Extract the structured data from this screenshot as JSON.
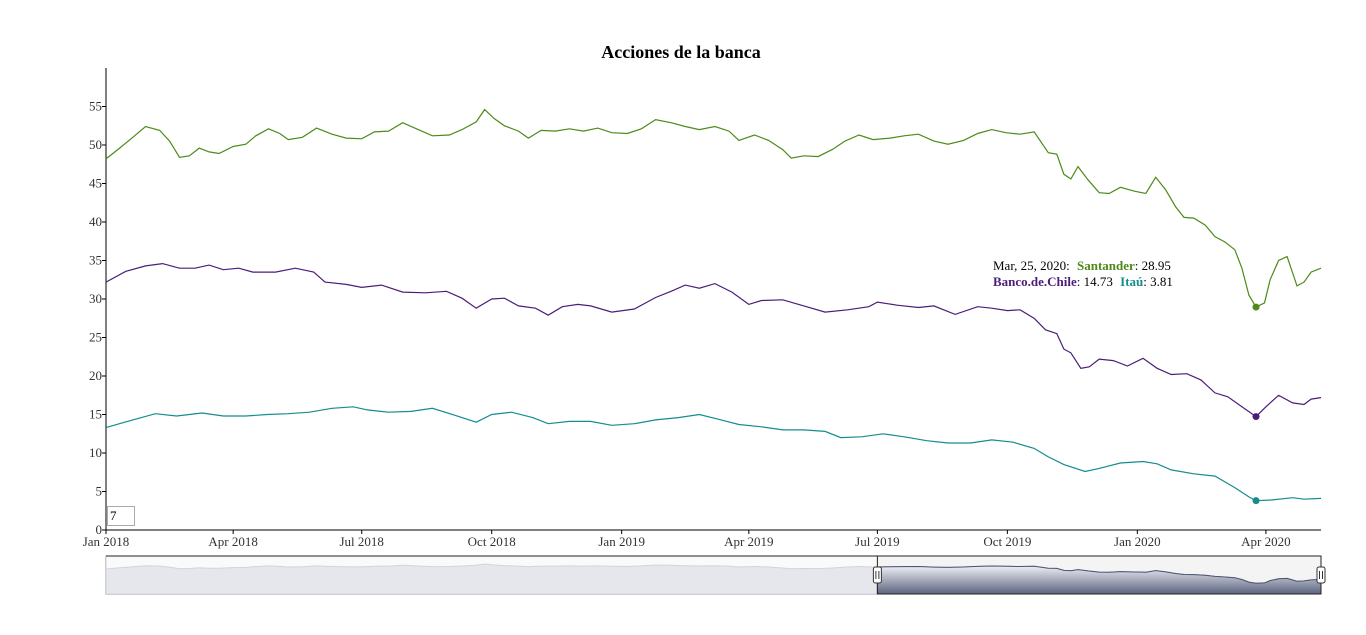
{
  "chart_data": {
    "type": "line",
    "title": "Acciones de la banca",
    "xlabel": "",
    "ylabel": "",
    "x_range": [
      "2018-01-01",
      "2020-05-10"
    ],
    "ylim": [
      0,
      60
    ],
    "y_ticks": [
      0,
      5,
      10,
      15,
      20,
      25,
      30,
      35,
      40,
      45,
      50,
      55
    ],
    "x_ticks": [
      {
        "date": "2018-01-01",
        "label": "Jan 2018"
      },
      {
        "date": "2018-04-01",
        "label": "Apr 2018"
      },
      {
        "date": "2018-07-01",
        "label": "Jul 2018"
      },
      {
        "date": "2018-10-01",
        "label": "Oct 2018"
      },
      {
        "date": "2019-01-01",
        "label": "Jan 2019"
      },
      {
        "date": "2019-04-01",
        "label": "Apr 2019"
      },
      {
        "date": "2019-07-01",
        "label": "Jul 2019"
      },
      {
        "date": "2019-10-01",
        "label": "Oct 2019"
      },
      {
        "date": "2020-01-01",
        "label": "Jan 2020"
      },
      {
        "date": "2020-04-01",
        "label": "Apr 2020"
      }
    ],
    "grid": false,
    "legend_placement": "top-right",
    "legend": {
      "date_label": "Mar, 25, 2020:",
      "entries": [
        {
          "name": "Santander",
          "value": "28.95"
        },
        {
          "name": "Banco.de.Chile",
          "value": "14.73"
        },
        {
          "name": "Itaú",
          "value": "3.81"
        }
      ]
    },
    "highlight_date": "2020-03-25",
    "roll_period": "7",
    "range_selector_window": [
      "2019-07-01",
      "2020-05-10"
    ],
    "series": [
      {
        "name": "Santander",
        "color": "#4e8a1a",
        "points": [
          [
            "2018-01-01",
            48.2
          ],
          [
            "2018-01-10",
            49.5
          ],
          [
            "2018-01-20",
            51.0
          ],
          [
            "2018-01-29",
            52.4
          ],
          [
            "2018-02-08",
            51.9
          ],
          [
            "2018-02-15",
            50.5
          ],
          [
            "2018-02-22",
            48.4
          ],
          [
            "2018-03-01",
            48.6
          ],
          [
            "2018-03-08",
            49.6
          ],
          [
            "2018-03-15",
            49.1
          ],
          [
            "2018-03-22",
            48.9
          ],
          [
            "2018-04-01",
            49.8
          ],
          [
            "2018-04-10",
            50.1
          ],
          [
            "2018-04-17",
            51.2
          ],
          [
            "2018-04-26",
            52.1
          ],
          [
            "2018-05-04",
            51.5
          ],
          [
            "2018-05-10",
            50.7
          ],
          [
            "2018-05-20",
            51.0
          ],
          [
            "2018-05-30",
            52.2
          ],
          [
            "2018-06-10",
            51.4
          ],
          [
            "2018-06-20",
            50.9
          ],
          [
            "2018-07-01",
            50.8
          ],
          [
            "2018-07-10",
            51.7
          ],
          [
            "2018-07-20",
            51.8
          ],
          [
            "2018-07-30",
            52.9
          ],
          [
            "2018-08-10",
            52.0
          ],
          [
            "2018-08-20",
            51.2
          ],
          [
            "2018-09-01",
            51.3
          ],
          [
            "2018-09-10",
            52.0
          ],
          [
            "2018-09-20",
            53.0
          ],
          [
            "2018-09-26",
            54.6
          ],
          [
            "2018-10-03",
            53.4
          ],
          [
            "2018-10-10",
            52.5
          ],
          [
            "2018-10-20",
            51.8
          ],
          [
            "2018-10-27",
            50.9
          ],
          [
            "2018-11-05",
            51.9
          ],
          [
            "2018-11-15",
            51.8
          ],
          [
            "2018-11-25",
            52.1
          ],
          [
            "2018-12-05",
            51.8
          ],
          [
            "2018-12-15",
            52.2
          ],
          [
            "2018-12-25",
            51.6
          ],
          [
            "2019-01-05",
            51.5
          ],
          [
            "2019-01-15",
            52.1
          ],
          [
            "2019-01-25",
            53.3
          ],
          [
            "2019-02-05",
            52.9
          ],
          [
            "2019-02-15",
            52.4
          ],
          [
            "2019-02-25",
            52.0
          ],
          [
            "2019-03-08",
            52.4
          ],
          [
            "2019-03-18",
            51.8
          ],
          [
            "2019-03-25",
            50.6
          ],
          [
            "2019-04-05",
            51.3
          ],
          [
            "2019-04-15",
            50.6
          ],
          [
            "2019-04-25",
            49.4
          ],
          [
            "2019-05-01",
            48.3
          ],
          [
            "2019-05-10",
            48.6
          ],
          [
            "2019-05-20",
            48.5
          ],
          [
            "2019-05-30",
            49.4
          ],
          [
            "2019-06-08",
            50.5
          ],
          [
            "2019-06-18",
            51.3
          ],
          [
            "2019-06-28",
            50.7
          ],
          [
            "2019-07-10",
            50.9
          ],
          [
            "2019-07-20",
            51.2
          ],
          [
            "2019-07-30",
            51.4
          ],
          [
            "2019-08-10",
            50.5
          ],
          [
            "2019-08-20",
            50.1
          ],
          [
            "2019-08-31",
            50.6
          ],
          [
            "2019-09-10",
            51.5
          ],
          [
            "2019-09-20",
            52.0
          ],
          [
            "2019-09-30",
            51.6
          ],
          [
            "2019-10-10",
            51.4
          ],
          [
            "2019-10-20",
            51.7
          ],
          [
            "2019-10-30",
            49.0
          ],
          [
            "2019-11-05",
            48.8
          ],
          [
            "2019-11-10",
            46.2
          ],
          [
            "2019-11-15",
            45.6
          ],
          [
            "2019-11-20",
            47.2
          ],
          [
            "2019-11-27",
            45.5
          ],
          [
            "2019-12-05",
            43.8
          ],
          [
            "2019-12-12",
            43.7
          ],
          [
            "2019-12-20",
            44.5
          ],
          [
            "2019-12-30",
            44.0
          ],
          [
            "2020-01-07",
            43.7
          ],
          [
            "2020-01-14",
            45.8
          ],
          [
            "2020-01-21",
            44.2
          ],
          [
            "2020-01-28",
            42.0
          ],
          [
            "2020-02-03",
            40.6
          ],
          [
            "2020-02-10",
            40.5
          ],
          [
            "2020-02-18",
            39.6
          ],
          [
            "2020-02-25",
            38.1
          ],
          [
            "2020-03-03",
            37.4
          ],
          [
            "2020-03-10",
            36.4
          ],
          [
            "2020-03-15",
            34.0
          ],
          [
            "2020-03-20",
            30.5
          ],
          [
            "2020-03-25",
            28.95
          ],
          [
            "2020-03-31",
            29.5
          ],
          [
            "2020-04-04",
            32.5
          ],
          [
            "2020-04-10",
            35.0
          ],
          [
            "2020-04-16",
            35.5
          ],
          [
            "2020-04-23",
            31.7
          ],
          [
            "2020-04-28",
            32.2
          ],
          [
            "2020-05-03",
            33.5
          ],
          [
            "2020-05-10",
            34.0
          ]
        ]
      },
      {
        "name": "Banco.de.Chile",
        "color": "#4b1d7a",
        "points": [
          [
            "2018-01-01",
            32.2
          ],
          [
            "2018-01-15",
            33.6
          ],
          [
            "2018-01-29",
            34.3
          ],
          [
            "2018-02-10",
            34.6
          ],
          [
            "2018-02-22",
            34.0
          ],
          [
            "2018-03-05",
            34.0
          ],
          [
            "2018-03-15",
            34.4
          ],
          [
            "2018-03-25",
            33.8
          ],
          [
            "2018-04-05",
            34.0
          ],
          [
            "2018-04-15",
            33.5
          ],
          [
            "2018-05-01",
            33.5
          ],
          [
            "2018-05-15",
            34.0
          ],
          [
            "2018-05-28",
            33.5
          ],
          [
            "2018-06-05",
            32.2
          ],
          [
            "2018-06-20",
            31.9
          ],
          [
            "2018-07-01",
            31.5
          ],
          [
            "2018-07-15",
            31.8
          ],
          [
            "2018-07-30",
            30.9
          ],
          [
            "2018-08-15",
            30.8
          ],
          [
            "2018-08-30",
            31.0
          ],
          [
            "2018-09-10",
            30.1
          ],
          [
            "2018-09-20",
            28.8
          ],
          [
            "2018-10-01",
            30.0
          ],
          [
            "2018-10-10",
            30.1
          ],
          [
            "2018-10-20",
            29.1
          ],
          [
            "2018-11-01",
            28.8
          ],
          [
            "2018-11-10",
            27.9
          ],
          [
            "2018-11-20",
            29.0
          ],
          [
            "2018-12-01",
            29.3
          ],
          [
            "2018-12-10",
            29.1
          ],
          [
            "2018-12-25",
            28.3
          ],
          [
            "2019-01-10",
            28.7
          ],
          [
            "2019-01-25",
            30.2
          ],
          [
            "2019-02-05",
            31.0
          ],
          [
            "2019-02-15",
            31.8
          ],
          [
            "2019-02-25",
            31.4
          ],
          [
            "2019-03-08",
            32.0
          ],
          [
            "2019-03-20",
            30.9
          ],
          [
            "2019-04-01",
            29.3
          ],
          [
            "2019-04-10",
            29.8
          ],
          [
            "2019-04-25",
            29.9
          ],
          [
            "2019-05-10",
            29.1
          ],
          [
            "2019-05-25",
            28.3
          ],
          [
            "2019-06-10",
            28.6
          ],
          [
            "2019-06-25",
            29.0
          ],
          [
            "2019-07-01",
            29.6
          ],
          [
            "2019-07-15",
            29.2
          ],
          [
            "2019-07-30",
            28.9
          ],
          [
            "2019-08-10",
            29.1
          ],
          [
            "2019-08-25",
            28.0
          ],
          [
            "2019-09-10",
            29.0
          ],
          [
            "2019-09-20",
            28.8
          ],
          [
            "2019-10-01",
            28.5
          ],
          [
            "2019-10-10",
            28.6
          ],
          [
            "2019-10-20",
            27.5
          ],
          [
            "2019-10-28",
            26.0
          ],
          [
            "2019-11-05",
            25.5
          ],
          [
            "2019-11-10",
            23.5
          ],
          [
            "2019-11-15",
            23.0
          ],
          [
            "2019-11-22",
            21.0
          ],
          [
            "2019-11-28",
            21.2
          ],
          [
            "2019-12-05",
            22.2
          ],
          [
            "2019-12-15",
            22.0
          ],
          [
            "2019-12-25",
            21.3
          ],
          [
            "2020-01-05",
            22.3
          ],
          [
            "2020-01-15",
            21.0
          ],
          [
            "2020-01-25",
            20.2
          ],
          [
            "2020-02-05",
            20.3
          ],
          [
            "2020-02-15",
            19.5
          ],
          [
            "2020-02-25",
            17.8
          ],
          [
            "2020-03-05",
            17.3
          ],
          [
            "2020-03-15",
            16.0
          ],
          [
            "2020-03-25",
            14.73
          ],
          [
            "2020-04-01",
            16.0
          ],
          [
            "2020-04-10",
            17.5
          ],
          [
            "2020-04-20",
            16.5
          ],
          [
            "2020-04-28",
            16.3
          ],
          [
            "2020-05-03",
            17.0
          ],
          [
            "2020-05-10",
            17.2
          ]
        ]
      },
      {
        "name": "Itaú",
        "color": "#168c8c",
        "points": [
          [
            "2018-01-01",
            13.3
          ],
          [
            "2018-01-20",
            14.3
          ],
          [
            "2018-02-05",
            15.1
          ],
          [
            "2018-02-20",
            14.8
          ],
          [
            "2018-03-10",
            15.2
          ],
          [
            "2018-03-25",
            14.8
          ],
          [
            "2018-04-10",
            14.8
          ],
          [
            "2018-04-25",
            15.0
          ],
          [
            "2018-05-10",
            15.1
          ],
          [
            "2018-05-25",
            15.3
          ],
          [
            "2018-06-10",
            15.8
          ],
          [
            "2018-06-25",
            16.0
          ],
          [
            "2018-07-05",
            15.6
          ],
          [
            "2018-07-20",
            15.3
          ],
          [
            "2018-08-05",
            15.4
          ],
          [
            "2018-08-20",
            15.8
          ],
          [
            "2018-09-05",
            14.9
          ],
          [
            "2018-09-20",
            14.0
          ],
          [
            "2018-10-01",
            15.0
          ],
          [
            "2018-10-15",
            15.3
          ],
          [
            "2018-10-30",
            14.6
          ],
          [
            "2018-11-10",
            13.8
          ],
          [
            "2018-11-25",
            14.1
          ],
          [
            "2018-12-10",
            14.1
          ],
          [
            "2018-12-25",
            13.6
          ],
          [
            "2019-01-10",
            13.8
          ],
          [
            "2019-01-25",
            14.3
          ],
          [
            "2019-02-10",
            14.6
          ],
          [
            "2019-02-25",
            15.0
          ],
          [
            "2019-03-10",
            14.4
          ],
          [
            "2019-03-25",
            13.7
          ],
          [
            "2019-04-10",
            13.4
          ],
          [
            "2019-04-25",
            13.0
          ],
          [
            "2019-05-10",
            13.0
          ],
          [
            "2019-05-25",
            12.8
          ],
          [
            "2019-06-05",
            12.0
          ],
          [
            "2019-06-20",
            12.1
          ],
          [
            "2019-07-05",
            12.5
          ],
          [
            "2019-07-20",
            12.1
          ],
          [
            "2019-08-05",
            11.6
          ],
          [
            "2019-08-20",
            11.3
          ],
          [
            "2019-09-05",
            11.3
          ],
          [
            "2019-09-20",
            11.7
          ],
          [
            "2019-10-05",
            11.4
          ],
          [
            "2019-10-20",
            10.6
          ],
          [
            "2019-10-30",
            9.5
          ],
          [
            "2019-11-10",
            8.5
          ],
          [
            "2019-11-25",
            7.6
          ],
          [
            "2019-12-05",
            8.0
          ],
          [
            "2019-12-20",
            8.7
          ],
          [
            "2020-01-05",
            8.9
          ],
          [
            "2020-01-15",
            8.6
          ],
          [
            "2020-01-25",
            7.8
          ],
          [
            "2020-02-10",
            7.3
          ],
          [
            "2020-02-25",
            7.0
          ],
          [
            "2020-03-10",
            5.5
          ],
          [
            "2020-03-20",
            4.3
          ],
          [
            "2020-03-25",
            3.81
          ],
          [
            "2020-04-05",
            3.9
          ],
          [
            "2020-04-20",
            4.2
          ],
          [
            "2020-04-28",
            4.0
          ],
          [
            "2020-05-10",
            4.1
          ]
        ]
      }
    ]
  }
}
